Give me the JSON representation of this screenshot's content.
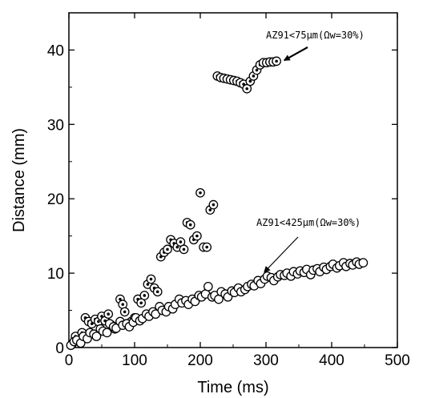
{
  "chart_data": {
    "type": "scatter",
    "xlabel": "Time (ms)",
    "ylabel": "Distance (mm)",
    "xlim": [
      0,
      500
    ],
    "ylim": [
      0,
      45
    ],
    "xticks": [
      "0",
      "100",
      "200",
      "300",
      "400",
      "500"
    ],
    "yticks": [
      "0",
      "10",
      "20",
      "30",
      "40"
    ],
    "grid": false,
    "annotations": [
      {
        "text": "AZ91<75μm(Ωw=30%)",
        "series": 0,
        "target": [
          318,
          38.4
        ]
      },
      {
        "text": "AZ91<425μm(Ωw=30%)",
        "series": 1,
        "target": [
          295,
          9.5
        ]
      }
    ],
    "series": [
      {
        "name": "AZ91<75μm(Ωw=30%)",
        "marker": "circle-dot",
        "x": [
          5,
          10,
          15,
          20,
          25,
          30,
          35,
          40,
          45,
          50,
          55,
          60,
          65,
          70,
          78,
          82,
          85,
          90,
          95,
          100,
          105,
          110,
          115,
          120,
          125,
          130,
          135,
          140,
          145,
          150,
          155,
          160,
          165,
          170,
          175,
          180,
          185,
          190,
          195,
          200,
          205,
          210,
          215,
          220,
          226,
          231,
          236,
          241,
          246,
          251,
          256,
          261,
          266,
          271,
          276,
          281,
          286,
          291,
          296,
          301,
          306,
          311,
          316
        ],
        "y": [
          0.5,
          1.5,
          1.0,
          2.0,
          4.0,
          3.5,
          3.2,
          3.8,
          3.5,
          4.2,
          3.6,
          4.5,
          3.0,
          2.5,
          6.5,
          5.8,
          4.8,
          3.0,
          3.5,
          4.0,
          6.5,
          6.0,
          7.0,
          8.5,
          9.2,
          8.0,
          7.5,
          12.2,
          12.8,
          13.2,
          14.5,
          14.0,
          13.5,
          14.2,
          13.2,
          16.8,
          16.5,
          14.5,
          15.0,
          20.8,
          13.5,
          13.5,
          18.5,
          19.2,
          36.5,
          36.3,
          36.2,
          36.1,
          36.0,
          35.9,
          35.8,
          35.6,
          35.4,
          34.8,
          35.8,
          36.5,
          37.3,
          38.0,
          38.3,
          38.3,
          38.4,
          38.4,
          38.5
        ]
      },
      {
        "name": "AZ91<425μm(Ωw=30%)",
        "marker": "circle-open",
        "x": [
          3,
          8,
          12,
          18,
          22,
          28,
          32,
          38,
          42,
          48,
          52,
          58,
          62,
          68,
          72,
          78,
          82,
          88,
          92,
          98,
          102,
          108,
          112,
          118,
          122,
          128,
          132,
          138,
          142,
          148,
          152,
          158,
          162,
          168,
          172,
          178,
          182,
          188,
          192,
          198,
          202,
          208,
          212,
          218,
          222,
          228,
          232,
          238,
          242,
          248,
          252,
          258,
          262,
          268,
          272,
          278,
          282,
          288,
          292,
          298,
          302,
          308,
          312,
          318,
          322,
          328,
          332,
          338,
          342,
          348,
          352,
          358,
          362,
          368,
          372,
          378,
          382,
          388,
          392,
          398,
          402,
          408,
          412,
          418,
          422,
          428,
          432,
          438,
          442,
          448
        ],
        "y": [
          0.3,
          0.8,
          1.0,
          0.6,
          1.5,
          1.2,
          2.0,
          1.8,
          1.5,
          2.5,
          2.2,
          2.0,
          3.2,
          2.8,
          2.6,
          3.5,
          3.0,
          3.2,
          2.8,
          3.4,
          4.0,
          3.6,
          3.9,
          4.5,
          4.2,
          4.8,
          4.5,
          5.5,
          5.0,
          4.8,
          5.5,
          5.2,
          5.8,
          6.5,
          6.0,
          6.3,
          5.8,
          6.5,
          6.2,
          7.0,
          6.8,
          7.2,
          8.2,
          6.8,
          7.0,
          6.5,
          7.5,
          7.2,
          6.8,
          7.6,
          7.4,
          8.0,
          7.5,
          7.8,
          8.2,
          8.5,
          8.3,
          9.0,
          8.6,
          9.2,
          9.6,
          9.4,
          9.0,
          9.5,
          9.8,
          9.7,
          10.0,
          9.6,
          10.2,
          9.9,
          10.3,
          10.1,
          10.5,
          9.8,
          10.4,
          10.6,
          10.2,
          10.8,
          10.5,
          10.9,
          11.2,
          10.7,
          11.0,
          11.4,
          10.9,
          11.3,
          11.1,
          11.5,
          11.2,
          11.4
        ]
      }
    ]
  }
}
